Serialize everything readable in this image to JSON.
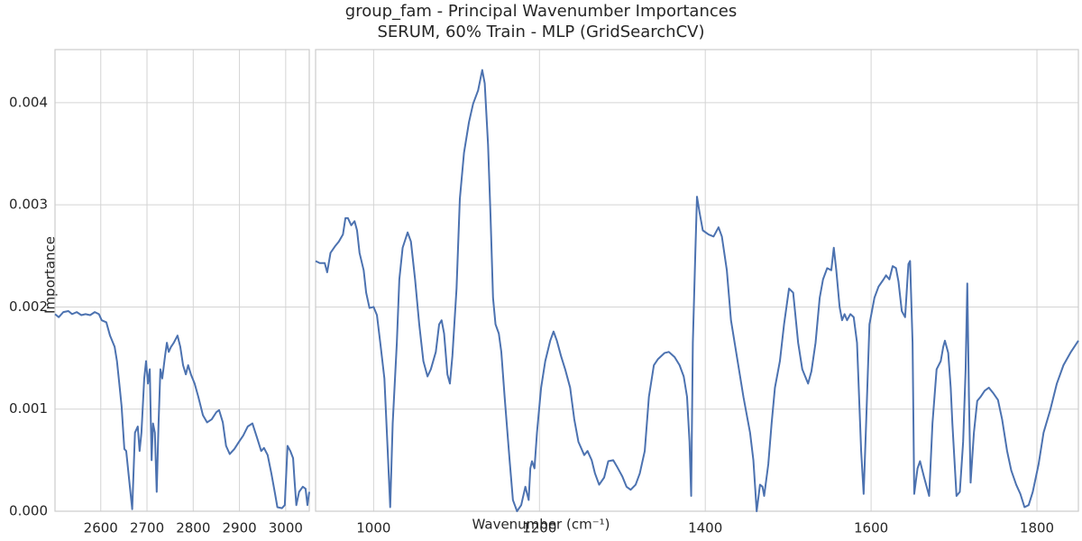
{
  "chart_data": [
    {
      "type": "line",
      "title": "group_fam - Principal Wavenumber Importances",
      "subtitle": "SERUM, 60% Train - MLP (GridSearchCV)",
      "xlabel": "Wavenumber (cm⁻¹)",
      "ylabel": "Importance",
      "color": "#4c72b0",
      "grid": true,
      "xlim": [
        2501,
        3051
      ],
      "xticks": [
        2600,
        2700,
        2800,
        2900,
        3000
      ],
      "ylim": [
        0,
        0.00452
      ],
      "yticks": [
        {
          "value": 0,
          "label": "0.000"
        },
        {
          "value": 0.001,
          "label": "0.001"
        },
        {
          "value": 0.002,
          "label": "0.002"
        },
        {
          "value": 0.003,
          "label": "0.003"
        },
        {
          "value": 0.004,
          "label": "0.004"
        }
      ],
      "x": [
        2501,
        2509,
        2519,
        2530,
        2538,
        2548,
        2558,
        2567,
        2577,
        2587,
        2596,
        2602,
        2612,
        2620,
        2630,
        2635,
        2641,
        2645,
        2651,
        2655,
        2660,
        2668,
        2674,
        2680,
        2684,
        2688,
        2694,
        2698,
        2702,
        2706,
        2710,
        2713,
        2717,
        2721,
        2725,
        2729,
        2733,
        2739,
        2743,
        2747,
        2752,
        2758,
        2766,
        2772,
        2778,
        2784,
        2789,
        2795,
        2803,
        2811,
        2821,
        2830,
        2840,
        2850,
        2856,
        2864,
        2871,
        2879,
        2889,
        2899,
        2908,
        2918,
        2928,
        2938,
        2947,
        2953,
        2961,
        2969,
        2977,
        2982,
        2992,
        2998,
        3004,
        3010,
        3016,
        3019,
        3023,
        3029,
        3037,
        3043,
        3047,
        3051
      ],
      "values": [
        0.00193,
        0.0019,
        0.00195,
        0.00196,
        0.00193,
        0.00195,
        0.00192,
        0.00193,
        0.00192,
        0.00195,
        0.00193,
        0.00187,
        0.00185,
        0.00172,
        0.00161,
        0.00147,
        0.00121,
        0.00103,
        0.00061,
        0.00059,
        0.00037,
        2e-05,
        0.00077,
        0.00083,
        0.00059,
        0.00077,
        0.0013,
        0.00147,
        0.00125,
        0.00139,
        0.0005,
        0.00086,
        0.00077,
        0.00019,
        0.00086,
        0.00139,
        0.0013,
        0.00152,
        0.00165,
        0.00156,
        0.00161,
        0.00165,
        0.00172,
        0.00161,
        0.00143,
        0.00134,
        0.00143,
        0.00134,
        0.00125,
        0.00112,
        0.00094,
        0.00087,
        0.0009,
        0.00097,
        0.00099,
        0.00087,
        0.00064,
        0.00056,
        0.00061,
        0.00068,
        0.00074,
        0.00083,
        0.00086,
        0.00072,
        0.00059,
        0.00062,
        0.00055,
        0.00037,
        0.00017,
        4e-05,
        3e-05,
        6e-05,
        0.00064,
        0.00059,
        0.00052,
        0.00031,
        6e-05,
        0.00019,
        0.00024,
        0.00022,
        6e-05,
        0.00019
      ]
    },
    {
      "type": "line",
      "color": "#4c72b0",
      "grid": true,
      "xlim": [
        930,
        1850
      ],
      "xticks": [
        1000,
        1200,
        1400,
        1600,
        1800
      ],
      "ylim": [
        0,
        0.00452
      ],
      "yticks": [
        0,
        0.001,
        0.002,
        0.003,
        0.004
      ],
      "x": [
        930,
        935,
        941,
        944,
        948,
        954,
        958,
        963,
        966,
        969,
        973,
        977,
        980,
        983,
        988,
        991,
        995,
        1000,
        1004,
        1008,
        1013,
        1017,
        1020,
        1023,
        1028,
        1031,
        1035,
        1041,
        1045,
        1050,
        1055,
        1060,
        1065,
        1069,
        1075,
        1079,
        1082,
        1085,
        1089,
        1092,
        1095,
        1100,
        1104,
        1109,
        1115,
        1120,
        1126,
        1131,
        1134,
        1138,
        1141,
        1144,
        1147,
        1151,
        1154,
        1158,
        1164,
        1168,
        1173,
        1178,
        1183,
        1187,
        1189,
        1191,
        1194,
        1197,
        1202,
        1207,
        1213,
        1217,
        1221,
        1226,
        1231,
        1237,
        1242,
        1247,
        1254,
        1258,
        1263,
        1267,
        1272,
        1278,
        1283,
        1289,
        1294,
        1300,
        1305,
        1310,
        1316,
        1321,
        1327,
        1332,
        1338,
        1343,
        1351,
        1356,
        1363,
        1369,
        1374,
        1378,
        1381,
        1383,
        1385,
        1388,
        1390,
        1393,
        1397,
        1404,
        1410,
        1416,
        1420,
        1426,
        1431,
        1439,
        1446,
        1454,
        1458,
        1462,
        1466,
        1469,
        1471,
        1476,
        1480,
        1484,
        1490,
        1495,
        1501,
        1506,
        1512,
        1517,
        1524,
        1528,
        1533,
        1538,
        1542,
        1547,
        1552,
        1555,
        1558,
        1562,
        1565,
        1568,
        1571,
        1575,
        1579,
        1583,
        1588,
        1591,
        1594,
        1598,
        1604,
        1609,
        1615,
        1618,
        1622,
        1626,
        1630,
        1633,
        1637,
        1641,
        1645,
        1647,
        1650,
        1652,
        1656,
        1659,
        1664,
        1670,
        1674,
        1679,
        1684,
        1687,
        1689,
        1693,
        1696,
        1698,
        1703,
        1707,
        1711,
        1714,
        1716,
        1718,
        1720,
        1724,
        1728,
        1732,
        1737,
        1742,
        1747,
        1753,
        1758,
        1764,
        1769,
        1775,
        1780,
        1785,
        1790,
        1795,
        1802,
        1808,
        1816,
        1824,
        1832,
        1841,
        1850
      ],
      "values": [
        0.00245,
        0.00243,
        0.00243,
        0.00234,
        0.00253,
        0.0026,
        0.00264,
        0.00271,
        0.00287,
        0.00287,
        0.0028,
        0.00284,
        0.00275,
        0.00253,
        0.00236,
        0.00214,
        0.00199,
        0.002,
        0.00192,
        0.00165,
        0.0013,
        0.00059,
        4e-05,
        0.00086,
        0.00165,
        0.00227,
        0.00258,
        0.00273,
        0.00264,
        0.00227,
        0.00183,
        0.00147,
        0.00132,
        0.00139,
        0.00156,
        0.00183,
        0.00187,
        0.00174,
        0.00134,
        0.00125,
        0.00152,
        0.00218,
        0.00306,
        0.00351,
        0.00381,
        0.00399,
        0.00412,
        0.00432,
        0.00419,
        0.00359,
        0.00289,
        0.00209,
        0.00183,
        0.00174,
        0.00156,
        0.00112,
        0.0005,
        0.00011,
        0,
        6e-05,
        0.00024,
        0.00011,
        0.00042,
        0.00049,
        0.00042,
        0.00077,
        0.00121,
        0.00147,
        0.00167,
        0.00176,
        0.00167,
        0.00152,
        0.00139,
        0.00121,
        0.0009,
        0.00068,
        0.00055,
        0.00059,
        0.0005,
        0.00037,
        0.00026,
        0.00033,
        0.00049,
        0.0005,
        0.00043,
        0.00034,
        0.00024,
        0.00021,
        0.00026,
        0.00037,
        0.00059,
        0.00112,
        0.00143,
        0.00149,
        0.00155,
        0.00156,
        0.00151,
        0.00143,
        0.00132,
        0.00112,
        0.00068,
        0.00015,
        0.00165,
        0.00253,
        0.00308,
        0.00293,
        0.00275,
        0.00271,
        0.00269,
        0.00278,
        0.00269,
        0.00236,
        0.00187,
        0.00147,
        0.00112,
        0.00077,
        0.0005,
        0,
        0.00026,
        0.00024,
        0.00015,
        0.00046,
        0.00086,
        0.00121,
        0.00147,
        0.00183,
        0.00218,
        0.00214,
        0.00165,
        0.00139,
        0.00125,
        0.00137,
        0.00165,
        0.00209,
        0.00227,
        0.00238,
        0.00236,
        0.00258,
        0.00236,
        0.002,
        0.00187,
        0.00193,
        0.00187,
        0.00193,
        0.0019,
        0.00165,
        0.00059,
        0.00017,
        0.00086,
        0.00183,
        0.00209,
        0.0022,
        0.00227,
        0.00231,
        0.00227,
        0.0024,
        0.00238,
        0.00225,
        0.00196,
        0.0019,
        0.00242,
        0.00245,
        0.00165,
        0.00017,
        0.00042,
        0.00049,
        0.00033,
        0.00015,
        0.00086,
        0.00139,
        0.00147,
        0.00161,
        0.00167,
        0.00155,
        0.00121,
        0.00086,
        0.00015,
        0.00019,
        0.00068,
        0.00139,
        0.00223,
        0.00112,
        0.00028,
        0.00077,
        0.00108,
        0.00112,
        0.00118,
        0.00121,
        0.00116,
        0.00109,
        0.0009,
        0.00059,
        0.0004,
        0.00026,
        0.00017,
        4e-05,
        6e-05,
        0.00019,
        0.00046,
        0.00077,
        0.00099,
        0.00125,
        0.00143,
        0.00156,
        0.00167
      ]
    }
  ]
}
